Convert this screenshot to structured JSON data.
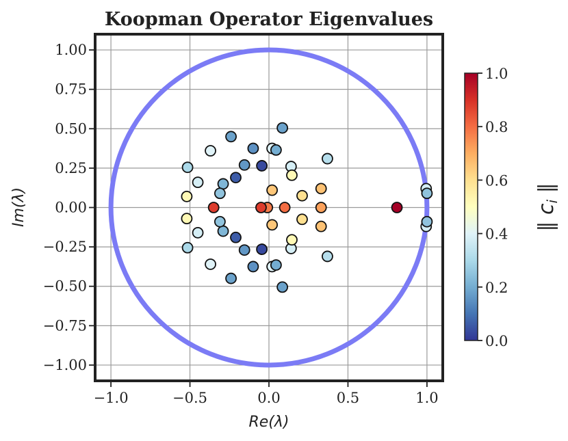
{
  "chart_data": {
    "type": "scatter",
    "title": "Koopman Operator Eigenvalues",
    "xlabel": "Re(λ)",
    "ylabel": "Im(λ)",
    "xlim": [
      -1.1,
      1.1
    ],
    "ylim": [
      -1.1,
      1.1
    ],
    "x_ticks": [
      -1.0,
      -0.5,
      0.0,
      0.5,
      1.0
    ],
    "y_ticks": [
      -1.0,
      -0.75,
      -0.5,
      -0.25,
      0.0,
      0.25,
      0.5,
      0.75,
      1.0
    ],
    "x_tick_labels": [
      "−1.0",
      "−0.5",
      "0.0",
      "0.5",
      "1.0"
    ],
    "y_tick_labels": [
      "−1.00",
      "−0.75",
      "−0.50",
      "−0.25",
      "0.00",
      "0.25",
      "0.50",
      "0.75",
      "1.00"
    ],
    "grid": true,
    "unit_circle": {
      "radius": 1.0,
      "color": "#7b7bf5"
    },
    "colorbar": {
      "label": "‖ c_i ‖",
      "range": [
        0.0,
        1.0
      ],
      "ticks": [
        0.0,
        0.2,
        0.4,
        0.6,
        0.8,
        1.0
      ],
      "tick_labels": [
        "0.0",
        "0.2",
        "0.4",
        "0.6",
        "0.8",
        "1.0"
      ],
      "colormap": "RdYlBu_r",
      "colormap_stops": [
        "#313695",
        "#4575b4",
        "#74add1",
        "#abd9e9",
        "#e0f3f8",
        "#ffffbf",
        "#fee090",
        "#fdae61",
        "#f46d43",
        "#d73027",
        "#a50026"
      ]
    },
    "points": [
      {
        "x": 0.81,
        "y": 0.0,
        "c": 1.0
      },
      {
        "x": 0.995,
        "y": 0.12,
        "c": 0.38
      },
      {
        "x": 0.995,
        "y": -0.12,
        "c": 0.38
      },
      {
        "x": 1.0,
        "y": 0.09,
        "c": 0.25
      },
      {
        "x": 1.0,
        "y": -0.09,
        "c": 0.25
      },
      {
        "x": 0.37,
        "y": 0.31,
        "c": 0.32
      },
      {
        "x": 0.37,
        "y": -0.31,
        "c": 0.32
      },
      {
        "x": 0.33,
        "y": 0.12,
        "c": 0.66
      },
      {
        "x": 0.33,
        "y": -0.12,
        "c": 0.66
      },
      {
        "x": 0.33,
        "y": 0.0,
        "c": 0.72
      },
      {
        "x": 0.21,
        "y": 0.075,
        "c": 0.6
      },
      {
        "x": 0.21,
        "y": -0.075,
        "c": 0.6
      },
      {
        "x": 0.1,
        "y": 0.0,
        "c": 0.8
      },
      {
        "x": 0.02,
        "y": 0.11,
        "c": 0.65
      },
      {
        "x": 0.02,
        "y": -0.11,
        "c": 0.65
      },
      {
        "x": 0.14,
        "y": 0.26,
        "c": 0.38
      },
      {
        "x": 0.14,
        "y": -0.26,
        "c": 0.38
      },
      {
        "x": 0.145,
        "y": 0.205,
        "c": 0.52
      },
      {
        "x": 0.145,
        "y": -0.205,
        "c": 0.52
      },
      {
        "x": 0.085,
        "y": 0.505,
        "c": 0.18
      },
      {
        "x": 0.085,
        "y": -0.505,
        "c": 0.18
      },
      {
        "x": 0.02,
        "y": 0.375,
        "c": 0.4
      },
      {
        "x": 0.02,
        "y": -0.375,
        "c": 0.4
      },
      {
        "x": 0.045,
        "y": 0.365,
        "c": 0.2
      },
      {
        "x": 0.045,
        "y": -0.365,
        "c": 0.2
      },
      {
        "x": -0.01,
        "y": 0.0,
        "c": 0.78
      },
      {
        "x": -0.045,
        "y": 0.265,
        "c": 0.03
      },
      {
        "x": -0.045,
        "y": -0.265,
        "c": 0.03
      },
      {
        "x": -0.05,
        "y": 0.0,
        "c": 0.88
      },
      {
        "x": -0.1,
        "y": 0.375,
        "c": 0.15
      },
      {
        "x": -0.1,
        "y": -0.375,
        "c": 0.15
      },
      {
        "x": -0.155,
        "y": 0.27,
        "c": 0.16
      },
      {
        "x": -0.155,
        "y": -0.27,
        "c": 0.16
      },
      {
        "x": -0.21,
        "y": 0.19,
        "c": 0.06
      },
      {
        "x": -0.21,
        "y": -0.19,
        "c": 0.06
      },
      {
        "x": -0.24,
        "y": 0.45,
        "c": 0.18
      },
      {
        "x": -0.24,
        "y": -0.45,
        "c": 0.18
      },
      {
        "x": -0.29,
        "y": 0.15,
        "c": 0.22
      },
      {
        "x": -0.29,
        "y": -0.15,
        "c": 0.22
      },
      {
        "x": -0.31,
        "y": 0.09,
        "c": 0.25
      },
      {
        "x": -0.31,
        "y": -0.09,
        "c": 0.25
      },
      {
        "x": -0.35,
        "y": 0.0,
        "c": 0.88
      },
      {
        "x": -0.37,
        "y": 0.36,
        "c": 0.4
      },
      {
        "x": -0.37,
        "y": -0.36,
        "c": 0.4
      },
      {
        "x": -0.45,
        "y": 0.16,
        "c": 0.38
      },
      {
        "x": -0.45,
        "y": -0.16,
        "c": 0.38
      },
      {
        "x": -0.515,
        "y": 0.255,
        "c": 0.3
      },
      {
        "x": -0.515,
        "y": -0.255,
        "c": 0.3
      },
      {
        "x": -0.52,
        "y": 0.07,
        "c": 0.52
      },
      {
        "x": -0.52,
        "y": -0.07,
        "c": 0.52
      }
    ]
  }
}
